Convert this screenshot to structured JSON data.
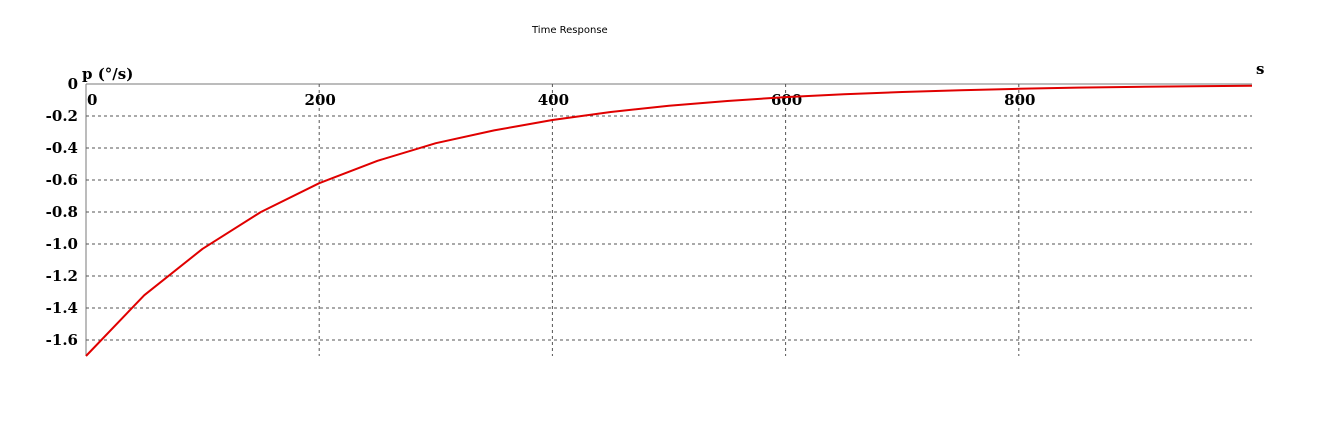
{
  "chart_data": {
    "type": "line",
    "title": "Time Response",
    "xlabel": "s",
    "ylabel": "p (°/s)",
    "xlim": [
      0,
      1000
    ],
    "ylim": [
      -1.7,
      0
    ],
    "x_ticks": [
      0,
      200,
      400,
      600,
      800
    ],
    "x_tick_labels": [
      "0",
      "200",
      "400",
      "600",
      "800"
    ],
    "y_ticks": [
      0,
      -0.2,
      -0.4,
      -0.6,
      -0.8,
      -1.0,
      -1.2,
      -1.4,
      -1.6
    ],
    "y_tick_labels": [
      "0",
      "-0.2",
      "-0.4",
      "-0.6",
      "-0.8",
      "-1.0",
      "-1.2",
      "-1.4",
      "-1.6"
    ],
    "grid": true,
    "series": [
      {
        "color": "#e00000",
        "x": [
          0,
          50,
          100,
          150,
          200,
          250,
          300,
          350,
          400,
          450,
          500,
          550,
          600,
          650,
          700,
          750,
          800,
          850,
          900,
          950,
          1000
        ],
        "values": [
          -1.7,
          -1.32,
          -1.03,
          -0.8,
          -0.62,
          -0.48,
          -0.37,
          -0.29,
          -0.225,
          -0.175,
          -0.136,
          -0.106,
          -0.082,
          -0.064,
          -0.05,
          -0.039,
          -0.03,
          -0.023,
          -0.018,
          -0.014,
          -0.011
        ]
      }
    ]
  }
}
